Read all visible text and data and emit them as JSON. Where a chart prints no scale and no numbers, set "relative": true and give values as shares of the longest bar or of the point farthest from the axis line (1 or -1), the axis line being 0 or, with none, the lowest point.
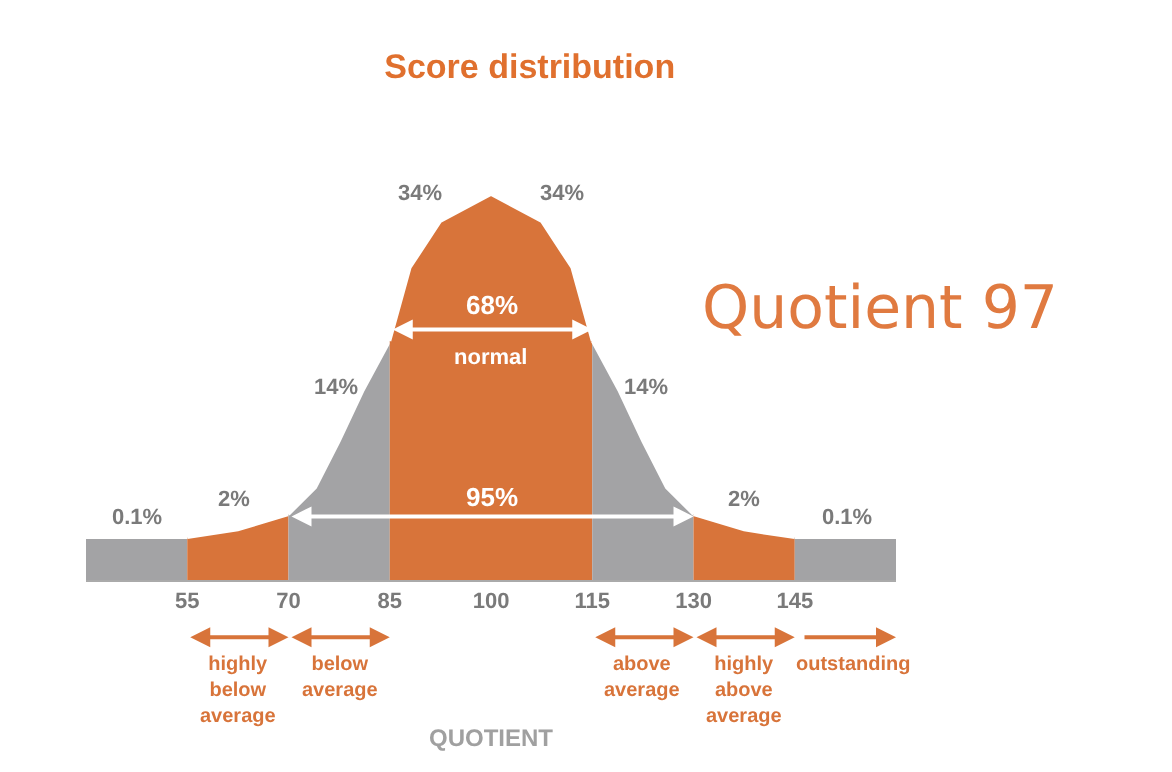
{
  "chart_data": {
    "type": "area",
    "title": "Score distribution",
    "xlabel": "QUOTIENT",
    "relative": true,
    "xlim": [
      40,
      160
    ],
    "xticks": [
      55,
      70,
      85,
      100,
      115,
      130,
      145
    ],
    "grid": false,
    "series": [
      {
        "color": "#a3a3a5",
        "x": [
          40,
          55
        ],
        "values": [
          0.11,
          0.11
        ]
      },
      {
        "color": "#d8743a",
        "x": [
          55,
          62.5,
          70
        ],
        "values": [
          0.11,
          0.13,
          0.17
        ]
      },
      {
        "color": "#a3a3a5",
        "x": [
          70,
          74,
          77.5,
          81,
          85
        ],
        "values": [
          0.17,
          0.24,
          0.36,
          0.49,
          0.62
        ]
      },
      {
        "color": "#d8743a",
        "x": [
          85,
          88,
          92.5,
          100
        ],
        "values": [
          0.62,
          0.81,
          0.93,
          1
        ]
      },
      {
        "color": "#d8743a",
        "x": [
          100,
          107.5,
          112,
          115
        ],
        "values": [
          1,
          0.93,
          0.81,
          0.62
        ]
      },
      {
        "color": "#a3a3a5",
        "x": [
          115,
          119,
          122.5,
          126,
          130
        ],
        "values": [
          0.62,
          0.49,
          0.36,
          0.24,
          0.17
        ]
      },
      {
        "color": "#d8743a",
        "x": [
          130,
          137.5,
          145
        ],
        "values": [
          0.17,
          0.13,
          0.11
        ]
      },
      {
        "color": "#a3a3a5",
        "x": [
          145,
          160
        ],
        "values": [
          0.11,
          0.11
        ]
      }
    ],
    "annotations": [
      "0.1%",
      "2%",
      "14%",
      "34%",
      "34%",
      "14%",
      "2%",
      "0.1%",
      "68%",
      "normal",
      "95%",
      "highly\nbelow\naverage",
      "below\naverage",
      "above\naverage",
      "highly\nabove\naverage",
      "outstanding",
      "Quotient 97"
    ]
  }
}
